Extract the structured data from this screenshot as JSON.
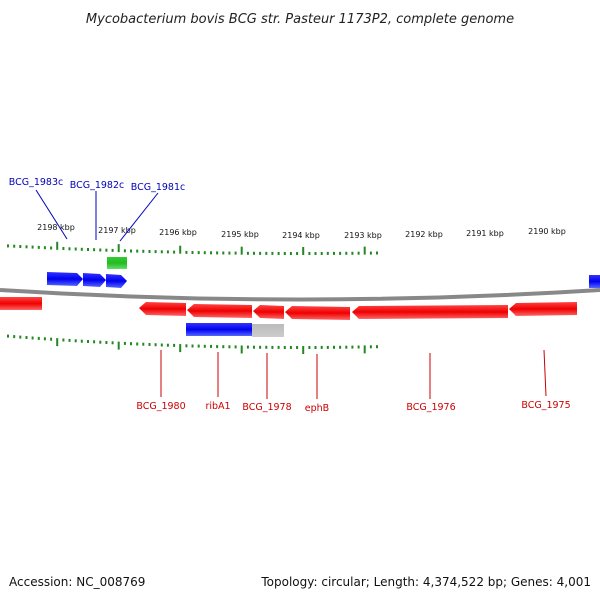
{
  "title": "Mycobacterium bovis BCG str. Pasteur 1173P2, complete genome",
  "accession_text": "Accession: NC_008769",
  "summary_text": "Topology: circular; Length: 4,374,522 bp; Genes: 4,001",
  "colors": {
    "forward_gene": "#0000ee",
    "reverse_gene": "#ee0000",
    "rna_gene": "#22bb22",
    "pseudo_gene": "#aaaaaa",
    "backbone": "#888888",
    "ticks": "#228822",
    "forward_label": "#0000bb",
    "reverse_label": "#cc0000"
  },
  "scale": {
    "unit": "kbp",
    "major_ticks": [
      "2198 kbp",
      "2197 kbp",
      "2196 kbp",
      "2195 kbp",
      "2194 kbp",
      "2193 kbp",
      "2192 kbp",
      "2191 kbp",
      "2190 kbp"
    ]
  },
  "genes_forward": [
    {
      "label": "BCG_1983c"
    },
    {
      "label": "BCG_1982c"
    },
    {
      "label": "BCG_1981c"
    }
  ],
  "genes_reverse": [
    {
      "label": "BCG_1980"
    },
    {
      "label": "ribA1"
    },
    {
      "label": "BCG_1978"
    },
    {
      "label": "ephB"
    },
    {
      "label": "BCG_1976"
    },
    {
      "label": "BCG_1975"
    }
  ]
}
